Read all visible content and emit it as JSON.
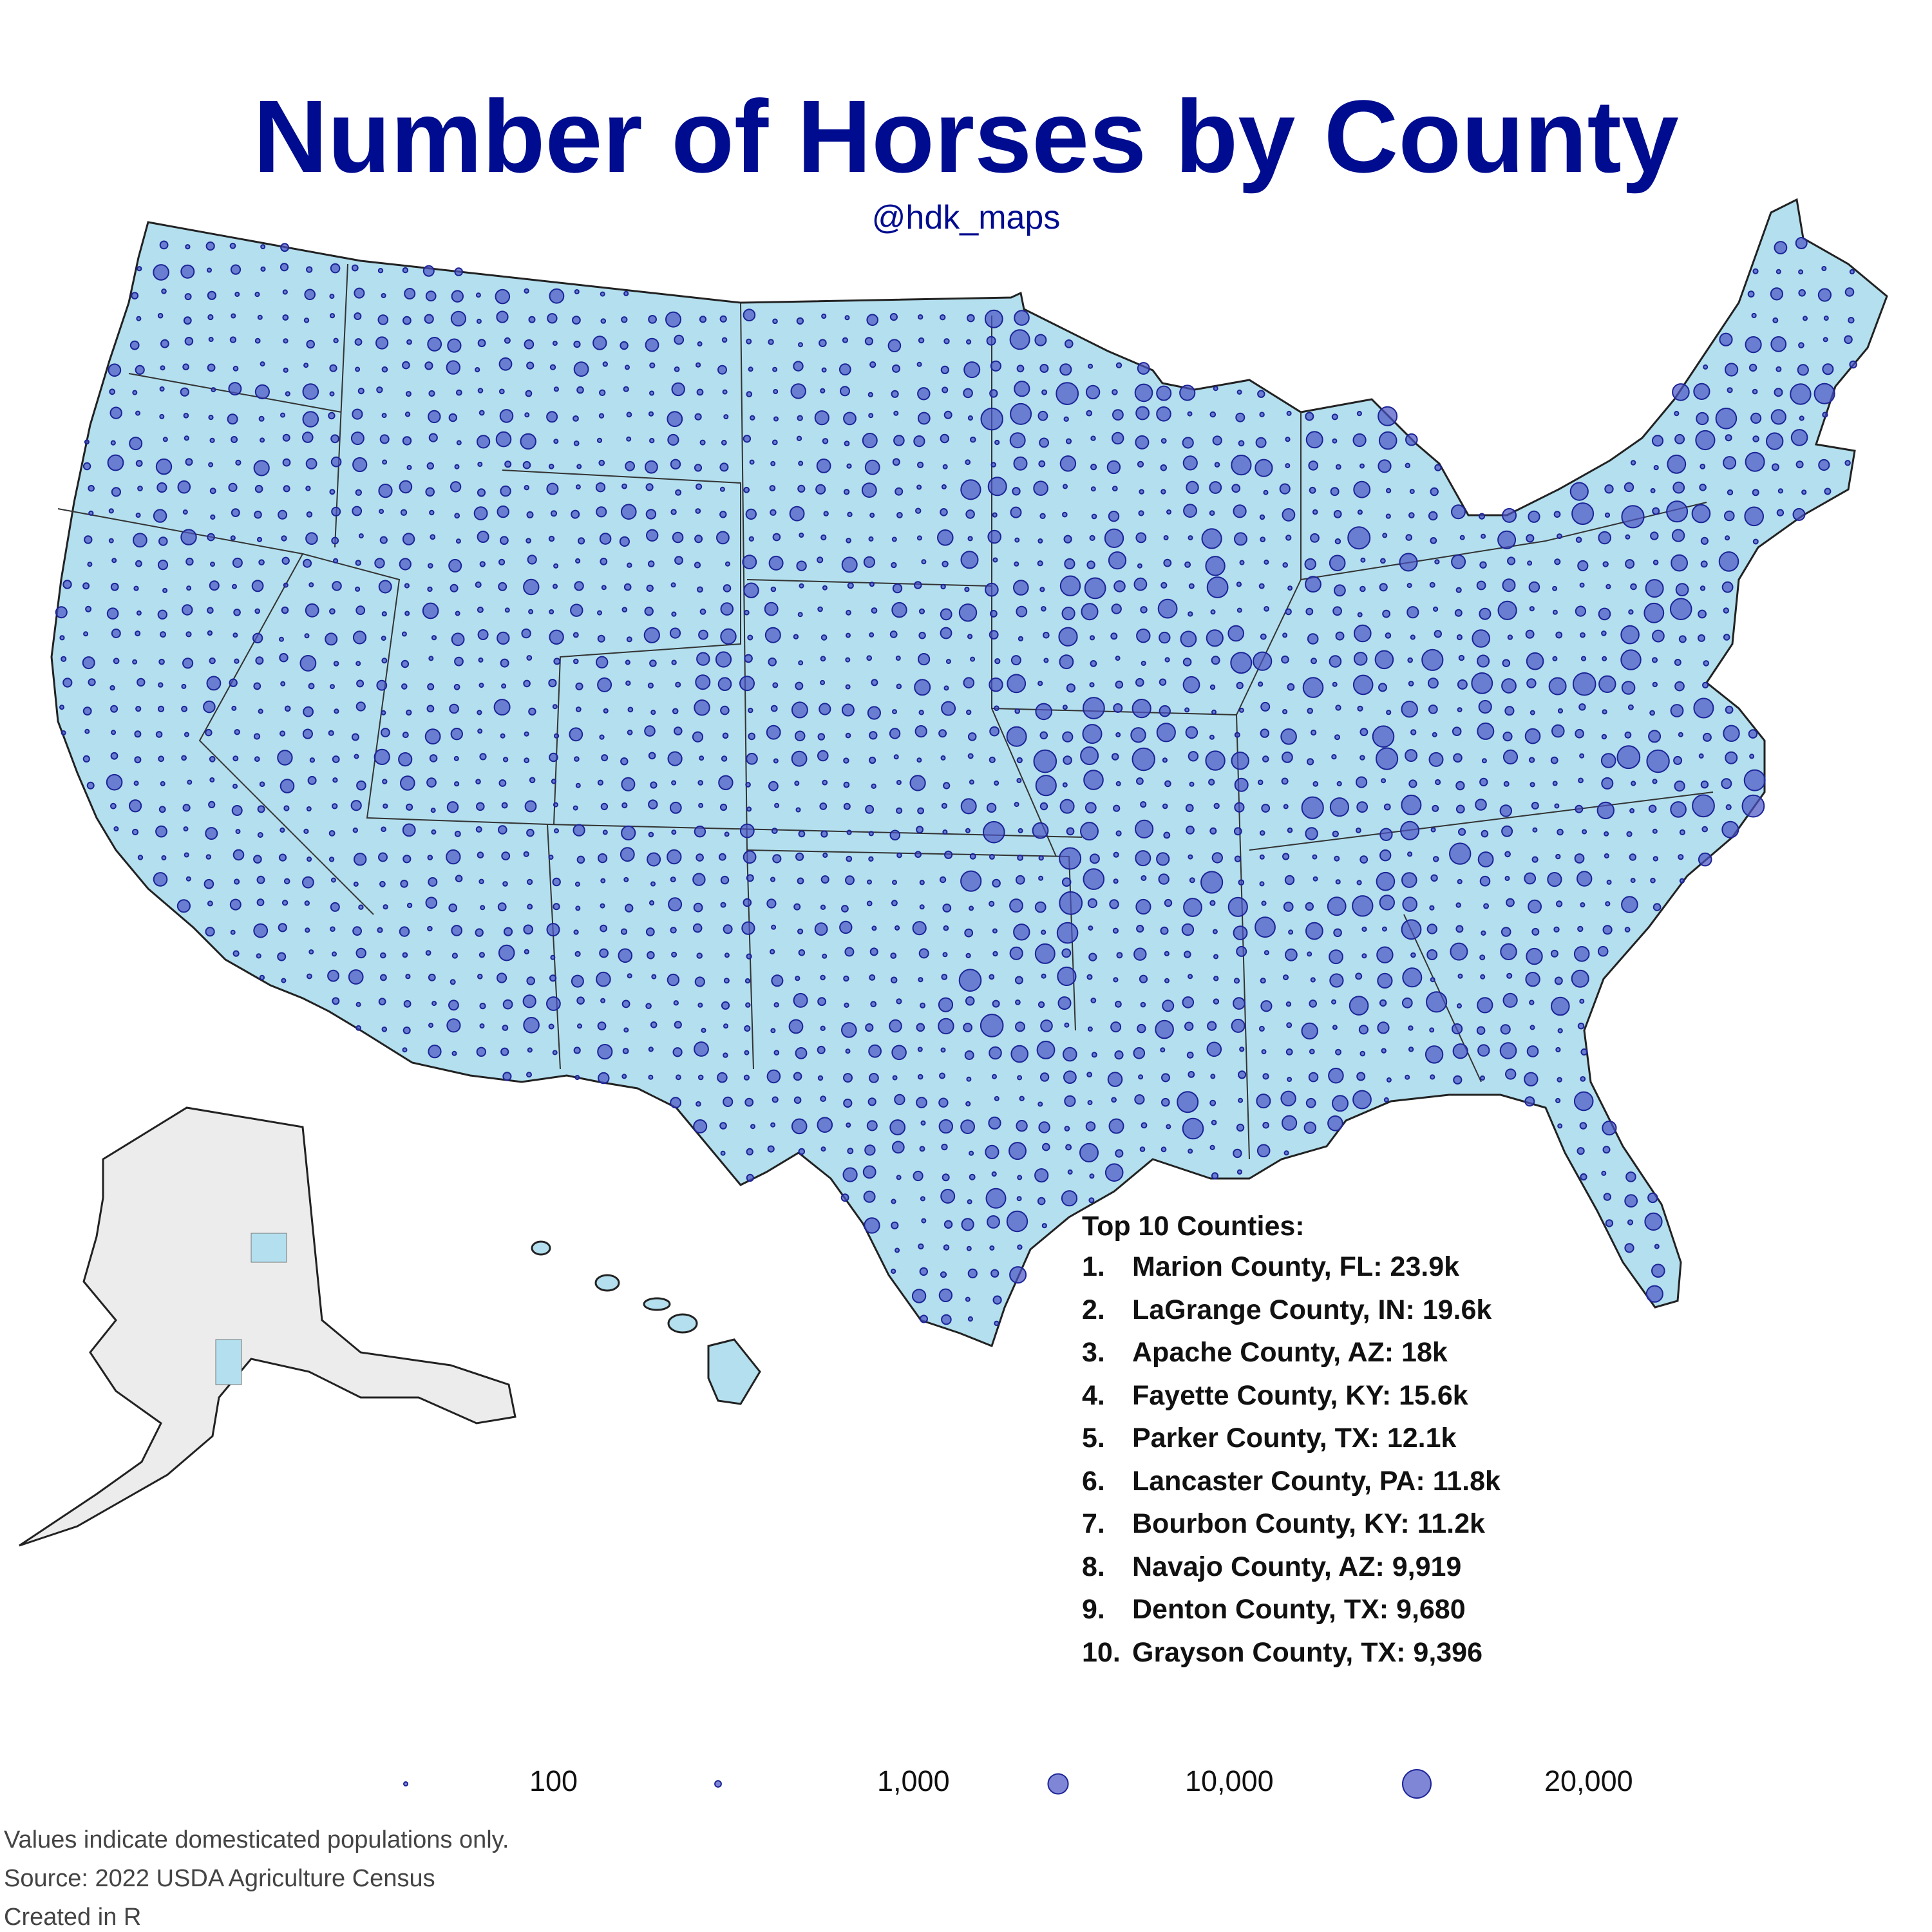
{
  "title": "Number of Horses by County",
  "credit": "@hdk_maps",
  "colors": {
    "title": "#000c8f",
    "land": "#b3dfee",
    "alaska": "#ececec",
    "bubble_fill": "#4a52c4",
    "bubble_stroke": "#1c2497"
  },
  "top10": {
    "header": "Top 10 Counties:",
    "items": [
      {
        "rank": "1.",
        "label": "Marion County, FL: 23.9k",
        "value": 23900
      },
      {
        "rank": "2.",
        "label": "LaGrange County, IN: 19.6k",
        "value": 19600
      },
      {
        "rank": "3.",
        "label": "Apache County, AZ: 18k",
        "value": 18000
      },
      {
        "rank": "4.",
        "label": "Fayette County, KY: 15.6k",
        "value": 15600
      },
      {
        "rank": "5.",
        "label": "Parker County, TX: 12.1k",
        "value": 12100
      },
      {
        "rank": "6.",
        "label": "Lancaster County, PA: 11.8k",
        "value": 11800
      },
      {
        "rank": "7.",
        "label": "Bourbon County, KY: 11.2k",
        "value": 11200
      },
      {
        "rank": "8.",
        "label": "Navajo County, AZ: 9,919",
        "value": 9919
      },
      {
        "rank": "9.",
        "label": "Denton County, TX: 9,680",
        "value": 9680
      },
      {
        "rank": "10.",
        "label": "Grayson County, TX: 9,396",
        "value": 9396
      }
    ]
  },
  "legend": {
    "items": [
      {
        "label": "100",
        "value": 100
      },
      {
        "label": "1,000",
        "value": 1000
      },
      {
        "label": "10,000",
        "value": 10000
      },
      {
        "label": "20,000",
        "value": 20000
      }
    ]
  },
  "footnotes": [
    "Values indicate domesticated populations only.",
    "Source: 2022 USDA Agriculture Census",
    "Created in R"
  ]
}
